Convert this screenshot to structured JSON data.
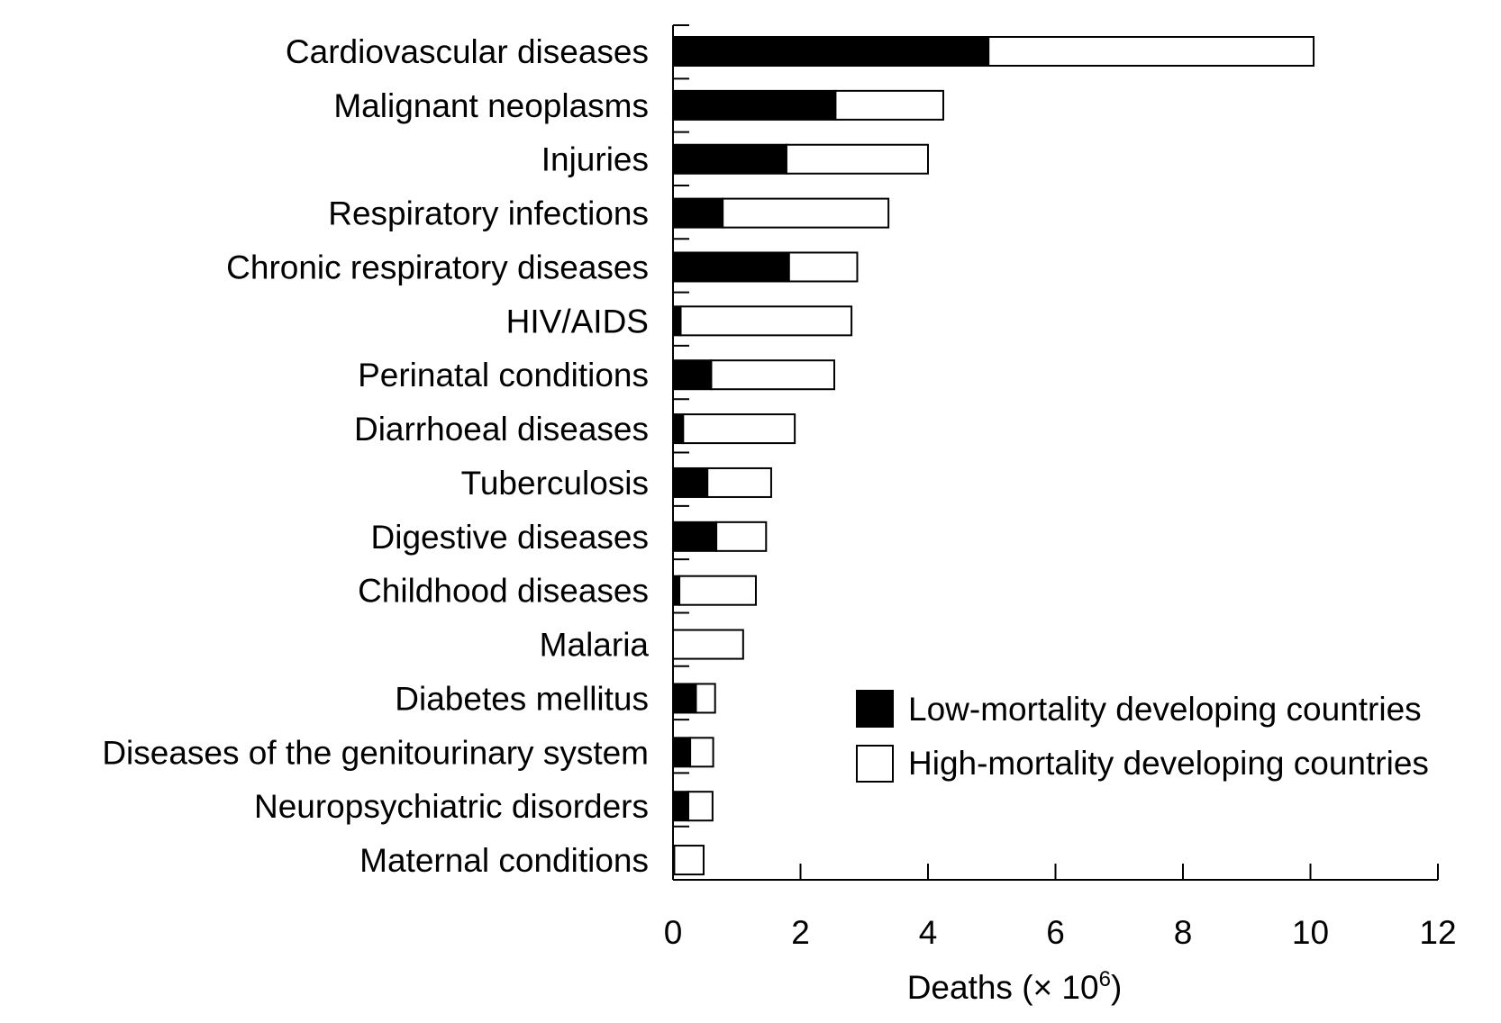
{
  "chart_data": {
    "type": "bar",
    "orientation": "horizontal",
    "stacked": true,
    "categories": [
      "Cardiovascular diseases",
      "Malignant neoplasms",
      "Injuries",
      "Respiratory infections",
      "Chronic respiratory diseases",
      "HIV/AIDS",
      "Perinatal conditions",
      "Diarrhoeal diseases",
      "Tuberculosis",
      "Digestive diseases",
      "Childhood diseases",
      "Malaria",
      "Diabetes mellitus",
      "Diseases of the genitourinary system",
      "Neuropsychiatric disorders",
      "Maternal conditions"
    ],
    "series": [
      {
        "name": "Low-mortality developing countries",
        "color": "#000000",
        "values": [
          4.95,
          2.55,
          1.78,
          0.78,
          1.82,
          0.12,
          0.6,
          0.16,
          0.54,
          0.68,
          0.1,
          0.0,
          0.36,
          0.27,
          0.24,
          0.02
        ]
      },
      {
        "name": "High-mortality developing countries",
        "color": "#ffffff",
        "values": [
          5.1,
          1.69,
          2.22,
          2.6,
          1.07,
          2.68,
          1.93,
          1.75,
          1.0,
          0.78,
          1.2,
          1.1,
          0.3,
          0.36,
          0.38,
          0.46
        ]
      }
    ],
    "xlabel": "Deaths (× 10",
    "xlabel_sup": "6",
    "xlabel_end": ")",
    "xlim": [
      0,
      12
    ],
    "xticks": [
      0,
      2,
      4,
      6,
      8,
      10,
      12
    ],
    "grid": false,
    "legend_position": "bottom-right"
  }
}
